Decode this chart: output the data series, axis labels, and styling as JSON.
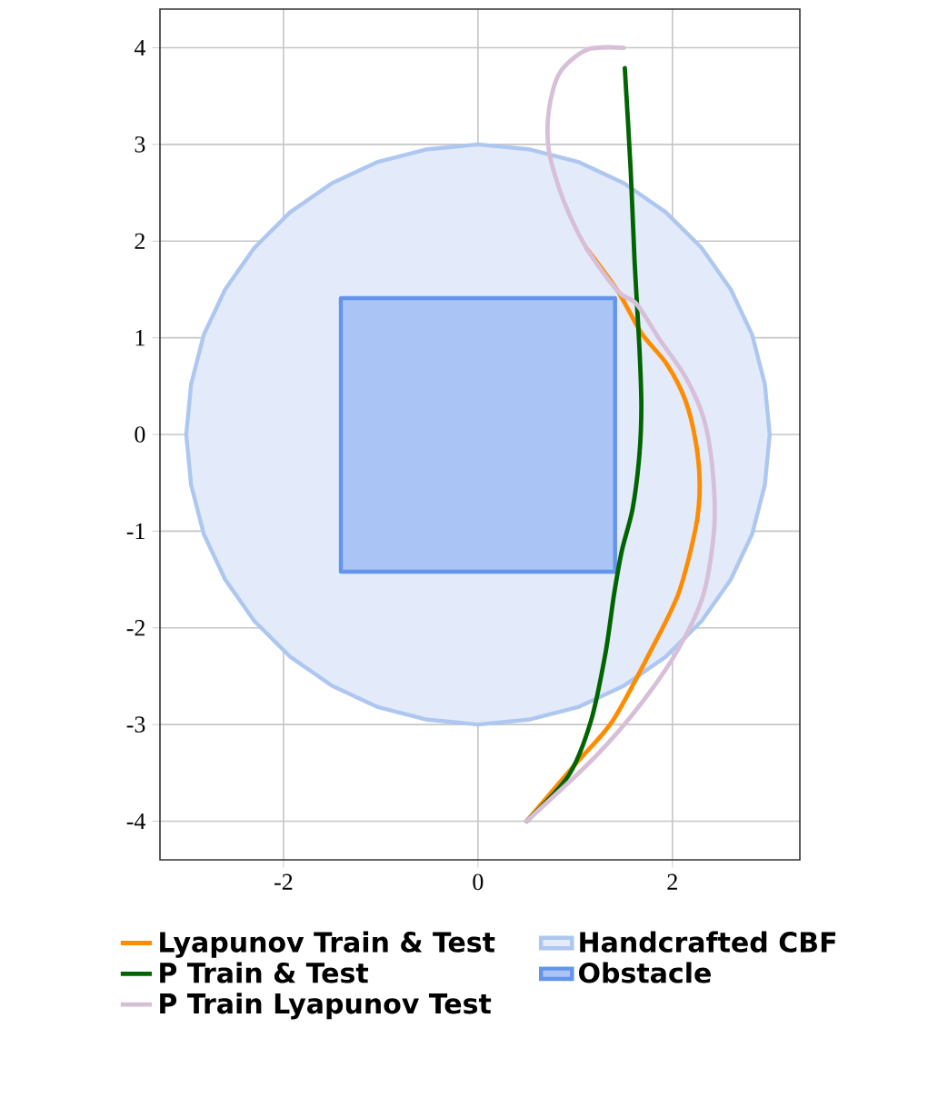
{
  "chart_data": {
    "type": "line",
    "xlim": [
      -3.27,
      3.31
    ],
    "ylim": [
      -4.4,
      4.4
    ],
    "xticks": [
      -2,
      0,
      2
    ],
    "yticks": [
      -4,
      -3,
      -2,
      -1,
      0,
      1,
      2,
      3,
      4
    ],
    "grid": true,
    "legend": "bottom",
    "marker": "none",
    "line_style": "solid",
    "series": [
      {
        "name": "Handcrafted CBF",
        "type": "area",
        "color": "#aec7f0",
        "x": [
          3,
          2.95,
          2.82,
          2.6,
          2.3,
          1.93,
          1.5,
          1.03,
          0.52,
          0,
          -0.52,
          -1.03,
          -1.5,
          -1.93,
          -2.3,
          -2.6,
          -2.82,
          -2.95,
          -3,
          -2.95,
          -2.82,
          -2.6,
          -2.3,
          -1.93,
          -1.5,
          -1.03,
          -0.52,
          0,
          0.52,
          1.03,
          1.5,
          1.93,
          2.3,
          2.6,
          2.82,
          2.95,
          3
        ],
        "values": [
          0,
          0.52,
          1.03,
          1.5,
          1.93,
          2.3,
          2.6,
          2.82,
          2.95,
          3,
          2.95,
          2.82,
          2.6,
          2.3,
          1.93,
          1.5,
          1.03,
          0.52,
          0,
          -0.52,
          -1.03,
          -1.5,
          -1.93,
          -2.3,
          -2.6,
          -2.82,
          -2.95,
          -3,
          -2.95,
          -2.82,
          -2.6,
          -2.3,
          -1.93,
          -1.5,
          -1.03,
          -0.52,
          0
        ]
      },
      {
        "name": "Obstacle",
        "type": "area",
        "color": "#6495ed",
        "x": [
          -1.41,
          1.41,
          1.41,
          -1.41,
          -1.41
        ],
        "values": [
          -1.42,
          -1.42,
          1.41,
          1.41,
          -1.42
        ]
      },
      {
        "name": "Lyapunov Train & Test",
        "color": "#ff8c00",
        "x": [
          0.5,
          1.01,
          1.38,
          1.76,
          2.06,
          2.24,
          2.28,
          2.24,
          2.13,
          1.94,
          1.68,
          1.44,
          1.12
        ],
        "values": [
          -4.0,
          -3.4,
          -2.97,
          -2.27,
          -1.65,
          -0.96,
          -0.53,
          -0.08,
          0.36,
          0.73,
          1.05,
          1.48,
          1.92
        ]
      },
      {
        "name": "P Train & Test",
        "color": "#006400",
        "x": [
          0.5,
          0.93,
          1.16,
          1.31,
          1.4,
          1.48,
          1.59,
          1.66,
          1.68,
          1.66,
          1.61,
          1.57,
          1.51
        ],
        "values": [
          -4.0,
          -3.53,
          -2.97,
          -2.27,
          -1.65,
          -1.2,
          -0.77,
          -0.21,
          0.3,
          0.9,
          1.8,
          2.74,
          3.79
        ]
      },
      {
        "name": "P Train Lyapunov Test",
        "color": "#d8bfd8",
        "x": [
          0.5,
          1.2,
          1.68,
          2.06,
          2.32,
          2.43,
          2.41,
          2.32,
          2.13,
          1.87,
          1.63,
          1.44,
          1.12,
          0.88,
          0.73,
          0.73,
          0.84,
          1.12,
          1.5
        ],
        "values": [
          -4.0,
          -3.34,
          -2.78,
          -2.22,
          -1.65,
          -0.96,
          -0.34,
          0.17,
          0.6,
          0.98,
          1.35,
          1.48,
          1.92,
          2.42,
          2.93,
          3.36,
          3.74,
          3.98,
          4.0
        ]
      }
    ]
  }
}
